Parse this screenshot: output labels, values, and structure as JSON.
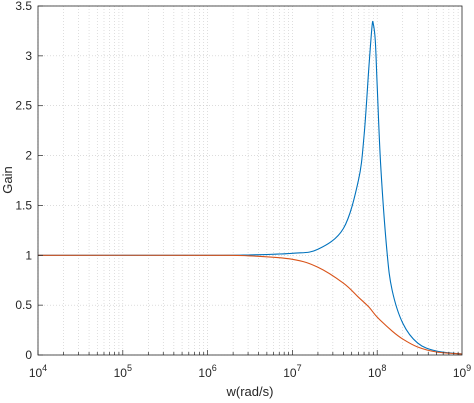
{
  "chart_data": {
    "type": "line",
    "xscale": "log",
    "xlim": [
      10000,
      1000000000
    ],
    "ylim": [
      0,
      3.5
    ],
    "xlabel": "w(rad/s)",
    "ylabel": "Gain",
    "grid": true,
    "x_ticks": [
      {
        "base": "10",
        "exp": "4"
      },
      {
        "base": "10",
        "exp": "5"
      },
      {
        "base": "10",
        "exp": "6"
      },
      {
        "base": "10",
        "exp": "7"
      },
      {
        "base": "10",
        "exp": "8"
      },
      {
        "base": "10",
        "exp": "9"
      }
    ],
    "y_ticks": [
      "0",
      "0.5",
      "1",
      "1.5",
      "2",
      "2.5",
      "3",
      "3.5"
    ],
    "y_tick_values": [
      0,
      0.5,
      1,
      1.5,
      2,
      2.5,
      3,
      3.5
    ],
    "series": [
      {
        "color": "#0072BD",
        "x": [
          10000,
          1000000,
          3000000,
          10000000,
          20000000,
          40000000,
          60000000,
          70000000,
          80000000,
          87000000,
          90000000,
          95000000,
          100000000,
          110000000,
          130000000,
          150000000,
          200000000,
          300000000,
          500000000,
          1000000000
        ],
        "y": [
          1,
          1,
          1.003,
          1.02,
          1.06,
          1.27,
          1.75,
          2.2,
          2.9,
          3.3,
          3.32,
          3.15,
          2.7,
          1.9,
          1.05,
          0.65,
          0.32,
          0.12,
          0.04,
          0.01
        ]
      },
      {
        "color": "#D95319",
        "x": [
          10000,
          1000000,
          3000000,
          10000000,
          20000000,
          40000000,
          60000000,
          80000000,
          100000000,
          150000000,
          200000000,
          300000000,
          500000000,
          1000000000
        ],
        "y": [
          1,
          1,
          0.995,
          0.96,
          0.88,
          0.72,
          0.58,
          0.48,
          0.38,
          0.24,
          0.16,
          0.08,
          0.03,
          0.01
        ]
      }
    ]
  }
}
